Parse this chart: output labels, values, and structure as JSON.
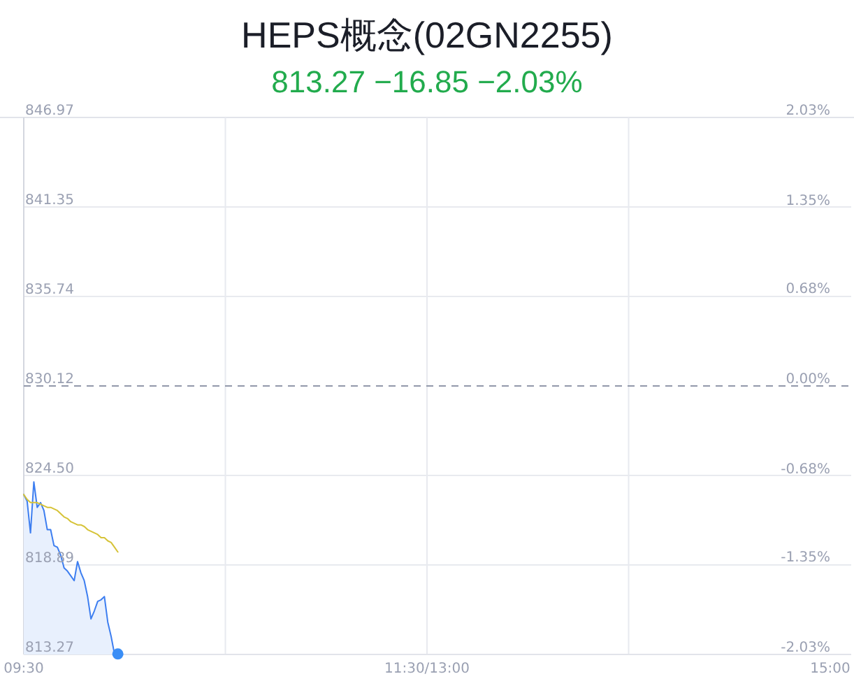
{
  "chart_data": {
    "type": "area",
    "title": "HEPS概念(02GN2255)",
    "subtitle": "813.27 −16.85 −2.03%",
    "categories": [
      "09:30",
      null,
      null,
      null,
      null,
      null,
      null,
      null,
      null,
      null,
      null,
      null,
      null,
      null,
      null,
      null,
      null,
      null,
      null,
      null,
      null,
      null,
      null,
      null,
      null,
      null,
      null,
      null,
      null,
      null,
      null,
      null,
      null,
      null,
      null,
      null,
      null,
      null,
      null,
      null,
      null,
      null,
      null,
      null,
      null,
      null,
      null,
      null,
      null,
      null,
      null,
      null,
      null,
      null,
      null,
      null,
      null,
      null,
      null,
      null,
      null,
      null,
      null,
      null,
      null,
      null,
      null,
      null,
      null,
      null,
      null,
      null,
      null,
      null,
      null,
      null,
      null,
      null,
      null,
      null,
      null,
      null,
      null,
      null,
      null,
      null,
      null,
      null,
      null,
      null,
      null,
      null,
      null,
      null,
      null,
      null,
      null,
      null,
      null,
      null,
      null,
      null,
      null,
      null,
      null,
      null,
      null,
      null,
      null,
      null,
      null,
      null,
      null,
      null,
      null,
      null,
      null,
      null,
      null,
      null,
      "11:30/13:00",
      null,
      null,
      null,
      null,
      null,
      null,
      null,
      null,
      null,
      null,
      null,
      null,
      null,
      null,
      null,
      null,
      null,
      null,
      null,
      null,
      null,
      null,
      null,
      null,
      null,
      null,
      null,
      null,
      null,
      null,
      null,
      null,
      null,
      null,
      null,
      null,
      null,
      null,
      null,
      null,
      null,
      null,
      null,
      null,
      null,
      null,
      null,
      null,
      null,
      null,
      null,
      null,
      null,
      null,
      null,
      null,
      null,
      null,
      null,
      null,
      null,
      null,
      null,
      null,
      null,
      null,
      null,
      null,
      null,
      null,
      null,
      null,
      null,
      null,
      null,
      null,
      null,
      null,
      null,
      null,
      null,
      null,
      null,
      null,
      null,
      null,
      null,
      null,
      null,
      null,
      null,
      null,
      null,
      null,
      null,
      null,
      null,
      null,
      null,
      null,
      null,
      null,
      null,
      null,
      null,
      null,
      null,
      null,
      null,
      null,
      null,
      null,
      null,
      null,
      null,
      null,
      null,
      null,
      null,
      "15:00"
    ],
    "ylim": [
      813.27,
      846.97
    ],
    "yticks": [
      813.27,
      818.89,
      {
        "value": 824.5,
        "label": "824.50"
      },
      830.12,
      835.74,
      841.35,
      846.97
    ],
    "y2lim": [
      -2.03,
      2.03
    ],
    "y2ticks": [
      {
        "value": -2.03,
        "label": "-2.03%"
      },
      {
        "value": -1.35,
        "label": "-1.35%"
      },
      {
        "value": -0.68,
        "label": "-0.68%"
      },
      {
        "value": 0,
        "label": "0.00%"
      },
      {
        "value": 0.68,
        "label": "0.68%"
      },
      {
        "value": 1.35,
        "label": "1.35%"
      },
      {
        "value": 2.03,
        "label": "2.03%"
      }
    ],
    "grid": true,
    "ref_lines": [
      {
        "axis": "y",
        "value": 830.12,
        "color": "#9298aa",
        "line_style": "dashed"
      }
    ],
    "series": [
      {
        "color": "#3d7ef0",
        "values": [
          823.3,
          822.9,
          820.9,
          824.1,
          822.5,
          822.8,
          822.3,
          821.1,
          821.1,
          820.1,
          820.0,
          819.5,
          818.7,
          818.5,
          818.2,
          817.9,
          819.1,
          818.4,
          817.9,
          816.9,
          815.5,
          816.0,
          816.6,
          816.7,
          816.9,
          815.3,
          814.4,
          813.3,
          813.3,
          null,
          null,
          null,
          null,
          null,
          null,
          null,
          null,
          null,
          null,
          null,
          null,
          null,
          null,
          null,
          null,
          null,
          null,
          null,
          null,
          null,
          null,
          null,
          null,
          null,
          null,
          null,
          null,
          null,
          null,
          null,
          null,
          null,
          null,
          null,
          null,
          null,
          null,
          null,
          null,
          null,
          null,
          null,
          null,
          null,
          null,
          null,
          null,
          null,
          null,
          null,
          null,
          null,
          null,
          null,
          null,
          null,
          null,
          null,
          null,
          null,
          null,
          null,
          null,
          null,
          null,
          null,
          null,
          null,
          null,
          null,
          null,
          null,
          null,
          null,
          null,
          null,
          null,
          null,
          null,
          null,
          null,
          null,
          null,
          null,
          null,
          null,
          null,
          null,
          null,
          null,
          null,
          null,
          null,
          null,
          null,
          null,
          null,
          null,
          null,
          null,
          null,
          null,
          null,
          null,
          null,
          null,
          null,
          null,
          null,
          null,
          null,
          null,
          null,
          null,
          null,
          null,
          null,
          null,
          null,
          null,
          null,
          null,
          null,
          null,
          null,
          null,
          null,
          null,
          null,
          null,
          null,
          null,
          null,
          null,
          null,
          null,
          null,
          null,
          null,
          null,
          null,
          null,
          null,
          null,
          null,
          null,
          null,
          null,
          null,
          null,
          null,
          null,
          null,
          null,
          null,
          null,
          null,
          null,
          null,
          null,
          null,
          null,
          null,
          null,
          null,
          null,
          null,
          null,
          null,
          null,
          null,
          null,
          null,
          null,
          null,
          null,
          null,
          null,
          null,
          null,
          null,
          null,
          null,
          null,
          null,
          null,
          null,
          null,
          null,
          null,
          null,
          null,
          null,
          null,
          null,
          null,
          null,
          null,
          null,
          null,
          null,
          null,
          null,
          null,
          null,
          null,
          null,
          null,
          null,
          null,
          null
        ]
      },
      {
        "type": "line",
        "color": "#d6c338",
        "values": [
          823.3,
          823.0,
          822.8,
          822.8,
          822.8,
          822.7,
          822.6,
          822.5,
          822.5,
          822.4,
          822.3,
          822.1,
          821.9,
          821.8,
          821.6,
          821.5,
          821.4,
          821.4,
          821.3,
          821.1,
          821.0,
          820.9,
          820.8,
          820.6,
          820.6,
          820.4,
          820.3,
          820.0,
          819.7,
          null,
          null,
          null,
          null,
          null,
          null,
          null,
          null,
          null,
          null,
          null,
          null,
          null,
          null,
          null,
          null,
          null,
          null,
          null,
          null,
          null,
          null,
          null,
          null,
          null,
          null,
          null,
          null,
          null,
          null,
          null,
          null,
          null,
          null,
          null,
          null,
          null,
          null,
          null,
          null,
          null,
          null,
          null,
          null,
          null,
          null,
          null,
          null,
          null,
          null,
          null,
          null,
          null,
          null,
          null,
          null,
          null,
          null,
          null,
          null,
          null,
          null,
          null,
          null,
          null,
          null,
          null,
          null,
          null,
          null,
          null,
          null,
          null,
          null,
          null,
          null,
          null,
          null,
          null,
          null,
          null,
          null,
          null,
          null,
          null,
          null,
          null,
          null,
          null,
          null,
          null,
          null,
          null,
          null,
          null,
          null,
          null,
          null,
          null,
          null,
          null,
          null,
          null,
          null,
          null,
          null,
          null,
          null,
          null,
          null,
          null,
          null,
          null,
          null,
          null,
          null,
          null,
          null,
          null,
          null,
          null,
          null,
          null,
          null,
          null,
          null,
          null,
          null,
          null,
          null,
          null,
          null,
          null,
          null,
          null,
          null,
          null,
          null,
          null,
          null,
          null,
          null,
          null,
          null,
          null,
          null,
          null,
          null,
          null,
          null,
          null,
          null,
          null,
          null,
          null,
          null,
          null,
          null,
          null,
          null,
          null,
          null,
          null,
          null,
          null,
          null,
          null,
          null,
          null,
          null,
          null,
          null,
          null,
          null,
          null,
          null,
          null,
          null,
          null,
          null,
          null,
          null,
          null,
          null,
          null,
          null,
          null,
          null,
          null,
          null,
          null,
          null,
          null,
          null,
          null,
          null,
          null,
          null,
          null,
          null,
          null,
          null,
          null,
          null,
          null,
          null,
          null,
          null,
          null,
          null,
          null,
          null
        ]
      },
      {
        "type": "scatter",
        "color": "#3a8ef6",
        "marker": "circle",
        "values": [
          null,
          null,
          null,
          null,
          null,
          null,
          null,
          null,
          null,
          null,
          null,
          null,
          null,
          null,
          null,
          null,
          null,
          null,
          null,
          null,
          null,
          null,
          null,
          null,
          null,
          null,
          null,
          null,
          813.3,
          null,
          null,
          null,
          null,
          null,
          null,
          null,
          null,
          null,
          null,
          null,
          null,
          null,
          null,
          null,
          null,
          null,
          null,
          null,
          null,
          null,
          null,
          null,
          null,
          null,
          null,
          null,
          null,
          null,
          null,
          null,
          null,
          null,
          null,
          null,
          null,
          null,
          null,
          null,
          null,
          null,
          null,
          null,
          null,
          null,
          null,
          null,
          null,
          null,
          null,
          null,
          null,
          null,
          null,
          null,
          null,
          null,
          null,
          null,
          null,
          null,
          null,
          null,
          null,
          null,
          null,
          null,
          null,
          null,
          null,
          null,
          null,
          null,
          null,
          null,
          null,
          null,
          null,
          null,
          null,
          null,
          null,
          null,
          null,
          null,
          null,
          null,
          null,
          null,
          null,
          null,
          null,
          null,
          null,
          null,
          null,
          null,
          null,
          null,
          null,
          null,
          null,
          null,
          null,
          null,
          null,
          null,
          null,
          null,
          null,
          null,
          null,
          null,
          null,
          null,
          null,
          null,
          null,
          null,
          null,
          null,
          null,
          null,
          null,
          null,
          null,
          null,
          null,
          null,
          null,
          null,
          null,
          null,
          null,
          null,
          null,
          null,
          null,
          null,
          null,
          null,
          null,
          null,
          null,
          null,
          null,
          null,
          null,
          null,
          null,
          null,
          null,
          null,
          null,
          null,
          null,
          null,
          null,
          null,
          null,
          null,
          null,
          null,
          null,
          null,
          null,
          null,
          null,
          null,
          null,
          null,
          null,
          null,
          null,
          null,
          null,
          null,
          null,
          null,
          null,
          null,
          null,
          null,
          null,
          null,
          null,
          null,
          null,
          null,
          null,
          null,
          null,
          null,
          null,
          null,
          null,
          null,
          null,
          null,
          null,
          null,
          null,
          null,
          null,
          null,
          null,
          null,
          null,
          null,
          null,
          null,
          null
        ]
      }
    ]
  }
}
